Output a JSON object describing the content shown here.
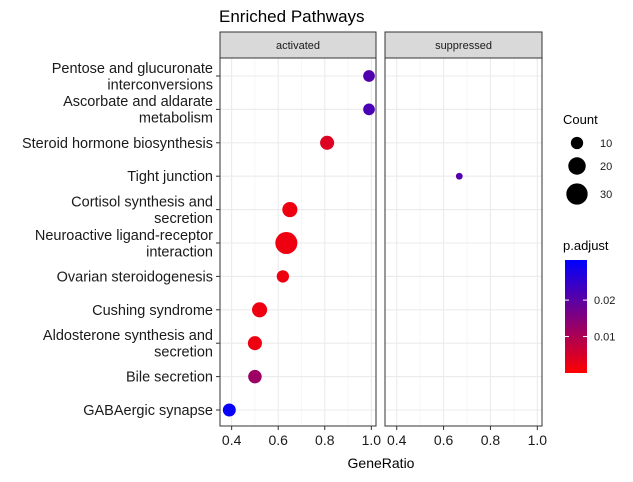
{
  "chart_data": {
    "type": "scatter",
    "title": "Enriched Pathways",
    "xlabel": "GeneRatio",
    "ylabel": "",
    "xlim": [
      0.35,
      1.02
    ],
    "x_ticks": [
      0.4,
      0.6,
      0.8,
      1.0
    ],
    "x_tick_labels": [
      "0.4",
      "0.6",
      "0.8",
      "1.0"
    ],
    "grid": true,
    "facets": [
      "activated",
      "suppressed"
    ],
    "categories": [
      [
        "Pentose and glucuronate",
        "interconversions"
      ],
      [
        "Ascorbate and aldarate",
        "metabolism"
      ],
      [
        "Steroid hormone biosynthesis"
      ],
      [
        "Tight junction"
      ],
      [
        "Cortisol synthesis and",
        "secretion"
      ],
      [
        "Neuroactive ligand-receptor",
        "interaction"
      ],
      [
        "Ovarian steroidogenesis"
      ],
      [
        "Cushing syndrome"
      ],
      [
        "Aldosterone synthesis and",
        "secretion"
      ],
      [
        "Bile secretion"
      ],
      [
        "GABAergic synapse"
      ]
    ],
    "points": [
      {
        "facet": "activated",
        "category": 0,
        "x": 0.99,
        "count": 9,
        "p_adjust": 0.021
      },
      {
        "facet": "activated",
        "category": 1,
        "x": 0.99,
        "count": 9,
        "p_adjust": 0.022
      },
      {
        "facet": "activated",
        "category": 2,
        "x": 0.81,
        "count": 13,
        "p_adjust": 0.004
      },
      {
        "facet": "suppressed",
        "category": 3,
        "x": 0.667,
        "count": 3,
        "p_adjust": 0.021
      },
      {
        "facet": "activated",
        "category": 4,
        "x": 0.65,
        "count": 15,
        "p_adjust": 0.002
      },
      {
        "facet": "activated",
        "category": 5,
        "x": 0.635,
        "count": 32,
        "p_adjust": 0.002
      },
      {
        "facet": "activated",
        "category": 6,
        "x": 0.62,
        "count": 10,
        "p_adjust": 0.002
      },
      {
        "facet": "activated",
        "category": 7,
        "x": 0.52,
        "count": 15,
        "p_adjust": 0.002
      },
      {
        "facet": "activated",
        "category": 8,
        "x": 0.5,
        "count": 13,
        "p_adjust": 0.002
      },
      {
        "facet": "activated",
        "category": 9,
        "x": 0.5,
        "count": 12,
        "p_adjust": 0.012
      },
      {
        "facet": "activated",
        "category": 10,
        "x": 0.39,
        "count": 11,
        "p_adjust": 0.03
      }
    ],
    "legend_count": {
      "title": "Count",
      "values": [
        10,
        20,
        30
      ],
      "labels": [
        "10",
        "20",
        "30"
      ]
    },
    "legend_color": {
      "title": "p.adjust",
      "range": [
        0,
        0.031
      ],
      "ticks": [
        0.01,
        0.02
      ],
      "tick_labels": [
        "0.01",
        "0.02"
      ],
      "low_color": "#FF0000",
      "high_color": "#0000FF"
    },
    "colors": {
      "panel_border": "#333333",
      "strip_fill": "#D9D9D9",
      "grid_major": "#EBEBEB",
      "grid_minor": "#F5F5F5"
    }
  }
}
